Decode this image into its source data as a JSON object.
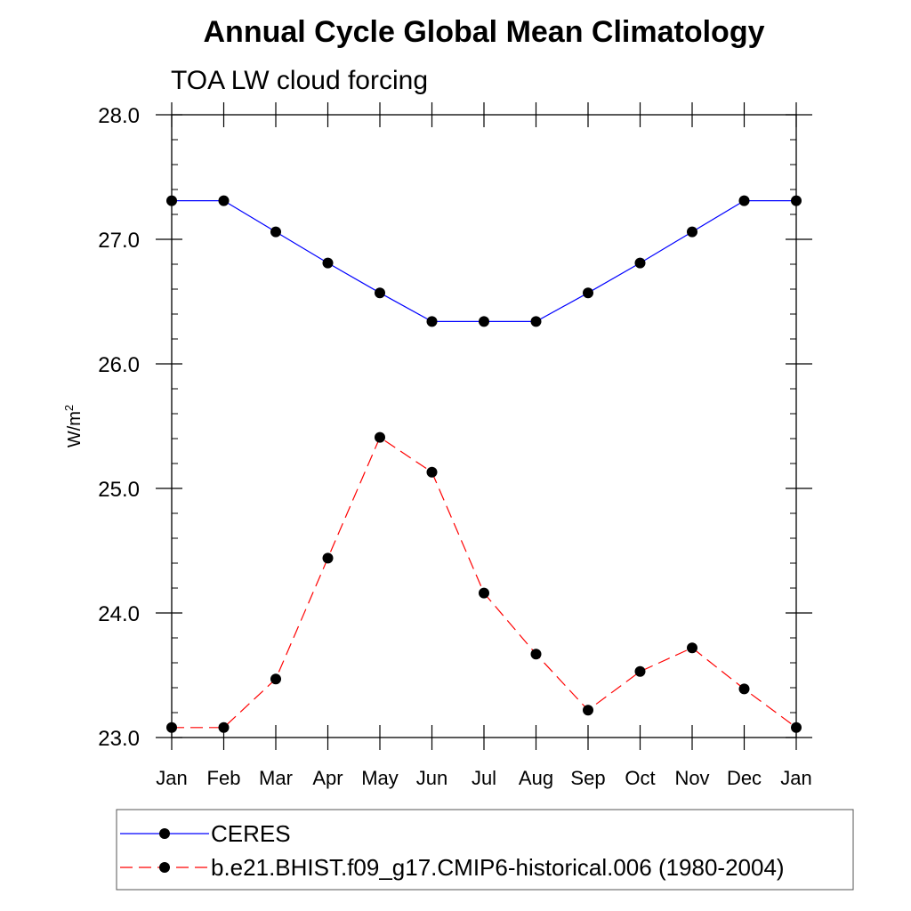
{
  "chart_data": {
    "type": "line",
    "title": "Annual Cycle Global Mean Climatology",
    "subtitle": "TOA LW cloud forcing",
    "xlabel": "",
    "ylabel": "W/m",
    "ylabel_superscript": "2",
    "categories": [
      "Jan",
      "Feb",
      "Mar",
      "Apr",
      "May",
      "Jun",
      "Jul",
      "Aug",
      "Sep",
      "Oct",
      "Nov",
      "Dec",
      "Jan"
    ],
    "ylim": [
      23.0,
      28.0
    ],
    "yticks": [
      "23.0",
      "24.0",
      "25.0",
      "26.0",
      "27.0",
      "28.0"
    ],
    "grid": false,
    "legend_position": "bottom",
    "series": [
      {
        "name": "CERES",
        "color": "#0000ff",
        "dash": "solid",
        "values": [
          27.31,
          27.31,
          27.06,
          26.81,
          26.57,
          26.34,
          26.34,
          26.34,
          26.57,
          26.81,
          27.06,
          27.31,
          27.31
        ]
      },
      {
        "name": "b.e21.BHIST.f09_g17.CMIP6-historical.006 (1980-2004)",
        "color": "#ff0000",
        "dash": "dashed",
        "values": [
          23.08,
          23.08,
          23.47,
          24.44,
          25.41,
          25.13,
          24.16,
          23.67,
          23.22,
          23.53,
          23.72,
          23.39,
          23.08
        ]
      }
    ]
  }
}
